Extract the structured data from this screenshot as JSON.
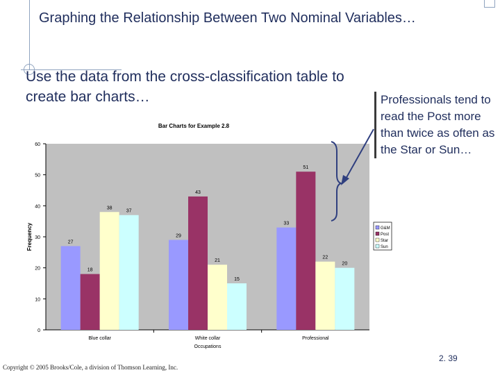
{
  "slide": {
    "title": "Graphing the Relationship Between Two Nominal Variables…",
    "body": "Use the data from the cross-classification table to create bar charts…",
    "callout": "Professionals tend to read the Post more than twice as often as the Star or Sun…",
    "copyright": "Copyright © 2005 Brooks/Cole, a division of Thomson Learning, Inc.",
    "slide_number": "2. 39"
  },
  "colors": {
    "text": "#1f2d5c",
    "plot_bg": "#c0c0c0",
    "series": [
      "#9999ff",
      "#993366",
      "#ffffcc",
      "#ccffff"
    ]
  },
  "chart_data": {
    "type": "bar",
    "title": "Bar Charts for Example 2.8",
    "xlabel": "Occupations",
    "ylabel": "Frequency",
    "categories": [
      "Blue collar",
      "White collar",
      "Professional"
    ],
    "series": [
      {
        "name": "G&M",
        "values": [
          27,
          29,
          33
        ]
      },
      {
        "name": "Post",
        "values": [
          18,
          43,
          51
        ]
      },
      {
        "name": "Star",
        "values": [
          38,
          21,
          22
        ]
      },
      {
        "name": "Sun",
        "values": [
          37,
          15,
          20
        ]
      }
    ],
    "ylim": [
      0,
      60
    ],
    "yticks": [
      0,
      10,
      20,
      30,
      40,
      50,
      60
    ],
    "grid": false,
    "legend": "right"
  }
}
